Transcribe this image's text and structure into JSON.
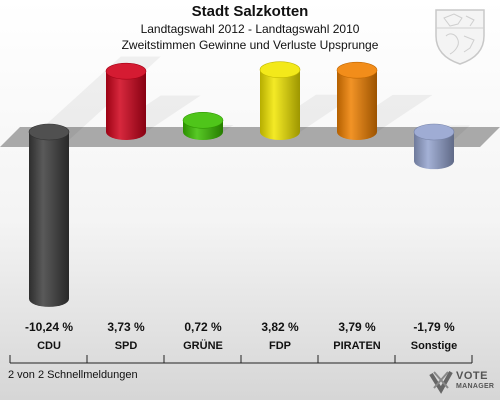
{
  "header": {
    "title": "Stadt Salzkotten",
    "subtitle1": "Landtagswahl 2012 - Landtagswahl 2010",
    "subtitle2": "Zweitstimmen Gewinne und Verluste Upsprunge"
  },
  "chart_data": {
    "type": "bar",
    "title": "Stadt Salzkotten",
    "categories": [
      "CDU",
      "SPD",
      "GRÜNE",
      "FDP",
      "PIRATEN",
      "Sonstige"
    ],
    "values": [
      -10.24,
      3.73,
      0.72,
      3.82,
      3.79,
      -1.79
    ],
    "value_labels": [
      "-10,24 %",
      "3,73 %",
      "0,72 %",
      "3,82 %",
      "3,79 %",
      "-1,79 %"
    ],
    "colors": [
      "#3d3d3d",
      "#d0021b",
      "#3bbf00",
      "#f2e600",
      "#f08000",
      "#94a3cf"
    ],
    "ylim": [
      -10.5,
      4
    ],
    "legend": "none",
    "grid": false
  },
  "footer": {
    "text": "2 von 2 Schnellmeldungen"
  },
  "logo": {
    "line1": "VOTE",
    "line2": "MANAGER"
  },
  "icons": {
    "crest": "crest-icon",
    "logo": "vote-manager-logo-icon"
  }
}
